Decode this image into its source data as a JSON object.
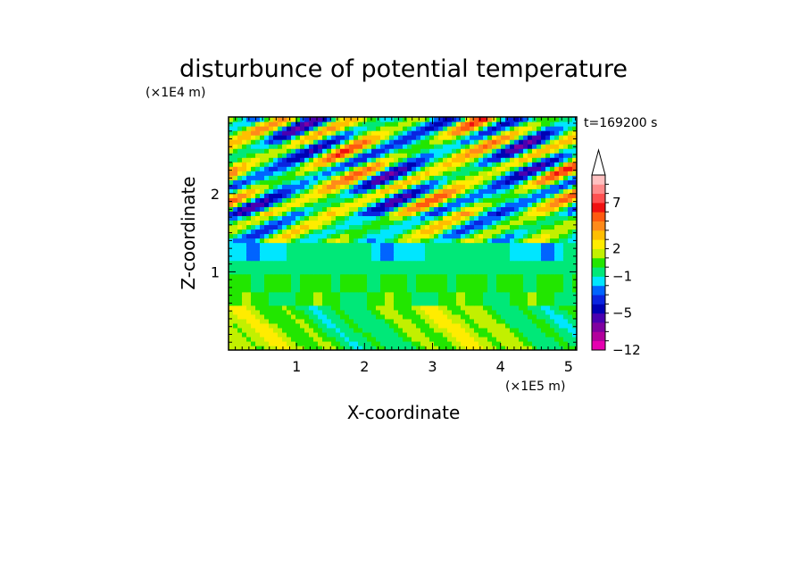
{
  "chart_data": {
    "type": "heatmap",
    "title": "disturbunce of potential temperature",
    "xlabel": "X-coordinate",
    "ylabel": "Z-coordinate",
    "x_unit": "(×1E5 m)",
    "y_unit": "(×1E4 m)",
    "time_label": "t=169200 s",
    "xlim": [
      0,
      5.12
    ],
    "ylim": [
      0,
      2.98
    ],
    "x_ticks": [
      "1",
      "2",
      "3",
      "4",
      "5"
    ],
    "y_ticks": [
      "1",
      "2"
    ],
    "colorbar": {
      "levels": [
        -12,
        -10,
        -8,
        -6,
        -5,
        -4,
        -3,
        -2,
        -1,
        0,
        1,
        2,
        3,
        4,
        5,
        6,
        7,
        8,
        9,
        10
      ],
      "labels": [
        "7",
        "2",
        "−1",
        "−5",
        "−12"
      ],
      "colors": [
        "#e600b0",
        "#b2009c",
        "#7f00a0",
        "#4a00b0",
        "#0000b4",
        "#0a24e0",
        "#0064ff",
        "#00e6ff",
        "#00e878",
        "#22e600",
        "#c2f000",
        "#ffec00",
        "#ffbe00",
        "#ff8a1a",
        "#ff5a10",
        "#f01010",
        "#ff5050",
        "#ff8a8a",
        "#ffc0c0"
      ],
      "extend": "max"
    },
    "field_note_levels": {
      "dominant_lower": "yellow to orange (0 to 2)",
      "band_mid": "cyan (-1)",
      "upper": "mixed wave pattern from -8 to 9"
    }
  }
}
